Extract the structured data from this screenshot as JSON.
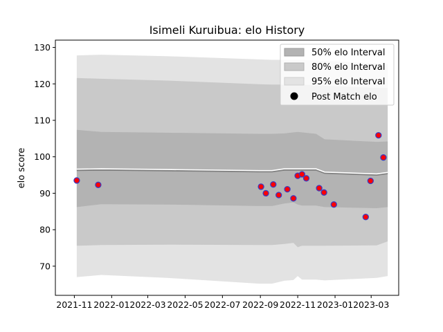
{
  "chart_data": {
    "type": "line",
    "title": "Isimeli Kuruibua: elo History",
    "xlabel": "",
    "ylabel": "elo score",
    "xlim": [
      "2021-10-01",
      "2023-04-15"
    ],
    "ylim": [
      62,
      132
    ],
    "x_ticks": [
      "2021-11",
      "2022-01",
      "2022-03",
      "2022-05",
      "2022-07",
      "2022-09",
      "2022-11",
      "2023-01",
      "2023-03"
    ],
    "y_ticks": [
      70,
      80,
      90,
      100,
      110,
      120,
      130
    ],
    "grid": false,
    "legend_position": "top-right",
    "legend": [
      "50% elo Interval",
      "80% elo Interval",
      "95% elo Interval",
      "Post Match elo"
    ],
    "colors": {
      "band_95": "#e3e3e3",
      "band_80": "#c9c9c9",
      "band_50": "#b3b3b3",
      "center_line": "#808080",
      "center_line_highlight": "#ffffff",
      "marker_fill": "#ff0000",
      "marker_edge": "#3b3bbf"
    },
    "bands": {
      "x": [
        "2021-11-05",
        "2021-12-15",
        "2022-04-01",
        "2022-08-30",
        "2022-09-20",
        "2022-10-10",
        "2022-10-25",
        "2022-11-01",
        "2022-11-08",
        "2022-12-01",
        "2022-12-15",
        "2023-03-10",
        "2023-03-28"
      ],
      "p95_upper": [
        127.8,
        128.0,
        127.6,
        126.7,
        126.6,
        126.6,
        126.6,
        126.6,
        126.6,
        126.4,
        126.3,
        125.6,
        125.5
      ],
      "p80_upper": [
        121.6,
        121.4,
        120.9,
        119.9,
        119.8,
        119.8,
        119.8,
        119.8,
        119.8,
        119.6,
        119.5,
        118.9,
        118.9
      ],
      "p50_upper": [
        107.4,
        106.8,
        106.6,
        106.3,
        106.3,
        106.4,
        106.7,
        106.8,
        106.7,
        106.3,
        104.8,
        104.1,
        104.2
      ],
      "mean": [
        96.3,
        96.4,
        96.2,
        95.9,
        95.9,
        96.4,
        96.4,
        96.4,
        96.4,
        96.4,
        95.5,
        95.0,
        95.4
      ],
      "p50_lower": [
        86.2,
        87.0,
        86.9,
        86.5,
        86.5,
        87.2,
        87.5,
        86.9,
        86.6,
        86.6,
        86.2,
        85.9,
        86.2
      ],
      "p80_lower": [
        75.6,
        75.8,
        75.9,
        75.8,
        75.8,
        76.1,
        76.4,
        75.2,
        75.6,
        75.6,
        75.6,
        75.7,
        76.8
      ],
      "p95_lower": [
        67.0,
        67.6,
        66.8,
        65.2,
        65.2,
        66.0,
        66.2,
        67.3,
        66.3,
        66.3,
        66.1,
        66.8,
        67.3
      ]
    },
    "series": [
      {
        "name": "Post Match elo",
        "x": [
          "2021-11-05",
          "2021-12-10",
          "2022-09-02",
          "2022-09-10",
          "2022-09-22",
          "2022-10-01",
          "2022-10-15",
          "2022-10-25",
          "2022-11-01",
          "2022-11-08",
          "2022-11-15",
          "2022-12-06",
          "2022-12-14",
          "2022-12-30",
          "2023-02-20",
          "2023-02-28",
          "2023-03-13",
          "2023-03-21"
        ],
        "y": [
          93.5,
          92.3,
          91.8,
          90.0,
          92.4,
          89.5,
          91.1,
          88.6,
          94.8,
          95.2,
          94.1,
          91.4,
          90.2,
          86.9,
          83.5,
          93.4,
          105.9,
          99.8
        ]
      }
    ]
  }
}
